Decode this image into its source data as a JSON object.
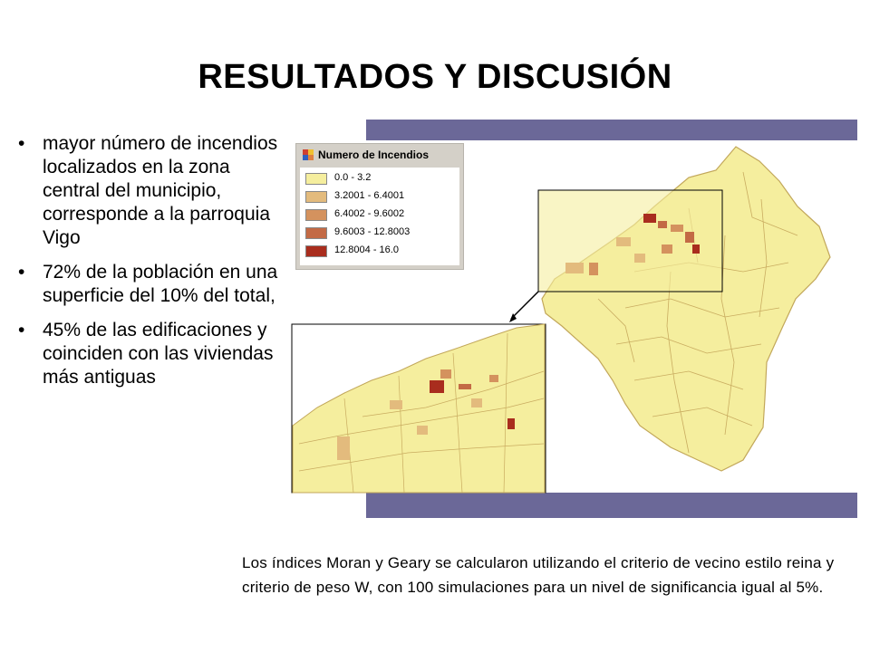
{
  "slide": {
    "title": "RESULTADOS Y DISCUSIÓN",
    "bullet_glyph": "•",
    "bullets": [
      "mayor número de incendios localizados en la zona central del municipio, corresponde a la parroquia Vigo",
      "72% de la población en una superficie del 10% del total,",
      "45% de las edificaciones y coinciden con las viviendas más antiguas"
    ],
    "note": "Los índices Moran y Geary  se calcularon utilizando el criterio de vecino estilo reina y criterio de peso W, con 100 simulaciones para un nivel de significancia igual al 5%."
  },
  "map": {
    "legend": {
      "title": "Numero de Incendios",
      "classes": [
        {
          "label": "0.0 - 3.2",
          "color": "#f5ee9e"
        },
        {
          "label": "3.2001 - 6.4001",
          "color": "#e3bb7d"
        },
        {
          "label": "6.4002 - 9.6002",
          "color": "#d4925e"
        },
        {
          "label": "9.6003 - 12.8003",
          "color": "#c36a45"
        },
        {
          "label": "12.8004 - 16.0",
          "color": "#a92d1e"
        }
      ]
    },
    "colors": {
      "frame": "#6b6898",
      "boundary": "#c2a75a"
    }
  }
}
